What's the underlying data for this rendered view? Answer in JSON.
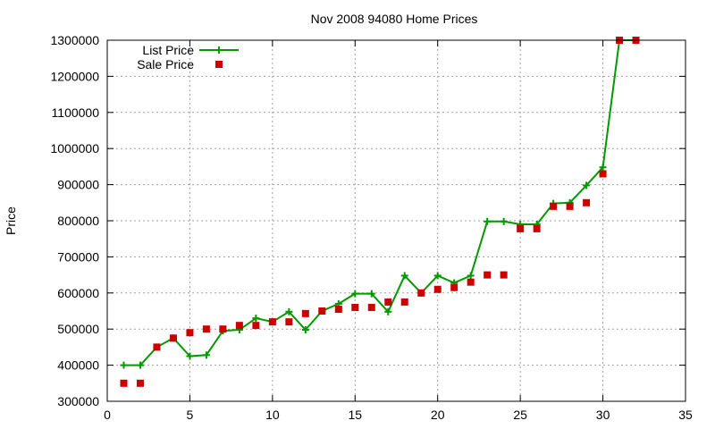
{
  "chart_data": {
    "type": "line",
    "title": "Nov 2008 94080 Home Prices",
    "xlabel": "",
    "ylabel": "Price",
    "xlim": [
      0,
      35
    ],
    "ylim": [
      300000,
      1300000
    ],
    "xticks": [
      0,
      5,
      10,
      15,
      20,
      25,
      30,
      35
    ],
    "yticks": [
      300000,
      400000,
      500000,
      600000,
      700000,
      800000,
      900000,
      1000000,
      1100000,
      1200000,
      1300000
    ],
    "grid": true,
    "legend_position": "top-left",
    "series": [
      {
        "name": "List Price",
        "style": "line-with-plus-markers",
        "color": "#009900",
        "x": [
          1,
          2,
          3,
          4,
          5,
          6,
          7,
          8,
          9,
          10,
          11,
          12,
          13,
          14,
          15,
          16,
          17,
          18,
          19,
          20,
          21,
          22,
          23,
          24,
          25,
          26,
          27,
          28,
          29,
          30,
          31,
          32
        ],
        "y": [
          400000,
          400000,
          450000,
          475000,
          425000,
          428000,
          495000,
          498000,
          530000,
          520000,
          548000,
          498000,
          550000,
          570000,
          598000,
          598000,
          548000,
          648000,
          600000,
          648000,
          628000,
          648000,
          798000,
          798000,
          790000,
          790000,
          848000,
          850000,
          898000,
          948000,
          1300000,
          1300000
        ]
      },
      {
        "name": "Sale Price",
        "style": "square-markers",
        "color": "#cc0000",
        "x": [
          1,
          2,
          3,
          4,
          5,
          6,
          7,
          8,
          9,
          10,
          11,
          12,
          13,
          14,
          15,
          16,
          17,
          18,
          19,
          20,
          21,
          22,
          23,
          24,
          25,
          26,
          27,
          28,
          29,
          30,
          31,
          32
        ],
        "y": [
          350000,
          350000,
          450000,
          475000,
          490000,
          500000,
          500000,
          510000,
          510000,
          520000,
          520000,
          543000,
          550000,
          555000,
          560000,
          560000,
          575000,
          575000,
          600000,
          610000,
          615000,
          630000,
          650000,
          650000,
          778000,
          778000,
          840000,
          840000,
          850000,
          930000,
          1300000,
          1300000
        ]
      }
    ]
  }
}
